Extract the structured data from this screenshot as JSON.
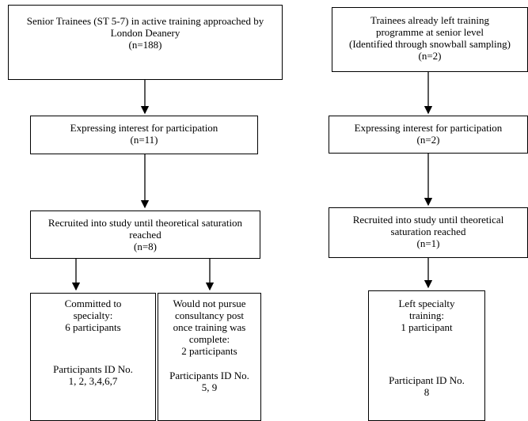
{
  "left": {
    "box1": {
      "l1": "Senior Trainees (ST 5-7) in active training approached by",
      "l2": "London Deanery",
      "l3": "(n=188)"
    },
    "box2": {
      "l1": "Expressing interest for participation",
      "l2": "(n=11)"
    },
    "box3": {
      "l1": "Recruited into study until theoretical saturation",
      "l2": "reached",
      "l3": "(n=8)"
    },
    "box4": {
      "l1": "Committed to",
      "l2": "specialty:",
      "l3": "6 participants",
      "id_label": "Participants ID No.",
      "ids": "1, 2, 3,4,6,7"
    },
    "box5": {
      "l1": "Would not pursue",
      "l2": "consultancy post",
      "l3": "once training was",
      "l4": "complete:",
      "l5": "2 participants",
      "id_label": "Participants ID No.",
      "ids": "5, 9"
    }
  },
  "right": {
    "box1": {
      "l1": "Trainees already left training",
      "l2": "programme at senior level",
      "l3": "(Identified through snowball sampling)",
      "l4": "(n=2)"
    },
    "box2": {
      "l1": "Expressing interest for participation",
      "l2": "(n=2)"
    },
    "box3": {
      "l1": "Recruited into study until theoretical",
      "l2": "saturation reached",
      "l3": "(n=1)"
    },
    "box4": {
      "l1": "Left specialty",
      "l2": "training:",
      "l3": "1 participant",
      "id_label": "Participant ID No.",
      "ids": "8"
    }
  }
}
